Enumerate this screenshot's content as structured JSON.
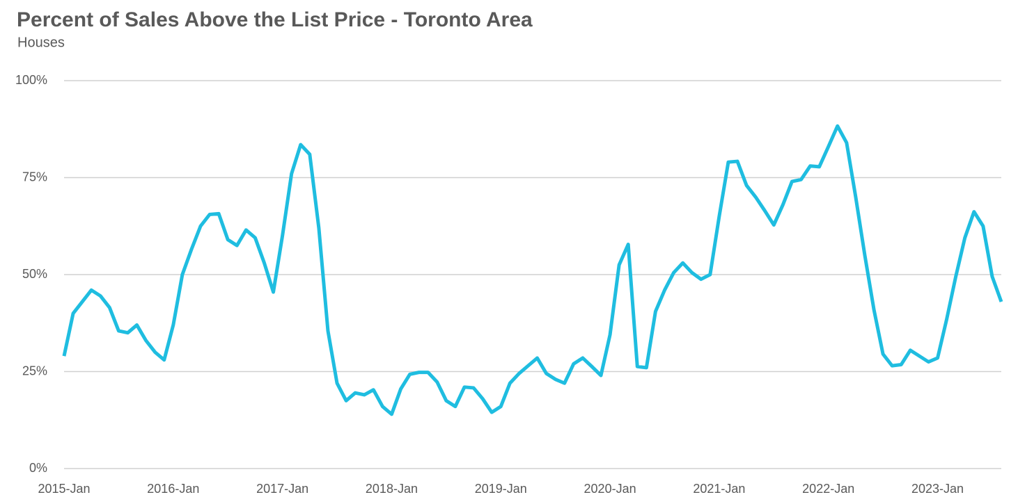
{
  "chart_data": {
    "type": "line",
    "title": "Percent of Sales Above the List Price - Toronto Area",
    "subtitle": "Houses",
    "categories": [
      "2015-Jan",
      null,
      null,
      null,
      null,
      null,
      null,
      null,
      null,
      null,
      null,
      null,
      "2016-Jan",
      null,
      null,
      null,
      null,
      null,
      null,
      null,
      null,
      null,
      null,
      null,
      "2017-Jan",
      null,
      null,
      null,
      null,
      null,
      null,
      null,
      null,
      null,
      null,
      null,
      "2018-Jan",
      null,
      null,
      null,
      null,
      null,
      null,
      null,
      null,
      null,
      null,
      null,
      "2019-Jan",
      null,
      null,
      null,
      null,
      null,
      null,
      null,
      null,
      null,
      null,
      null,
      "2020-Jan",
      null,
      null,
      null,
      null,
      null,
      null,
      null,
      null,
      null,
      null,
      null,
      "2021-Jan",
      null,
      null,
      null,
      null,
      null,
      null,
      null,
      null,
      null,
      null,
      null,
      "2022-Jan",
      null,
      null,
      null,
      null,
      null,
      null,
      null,
      null,
      null,
      null,
      null,
      "2023-Jan",
      null,
      null,
      null,
      null,
      null,
      null,
      null
    ],
    "values": [
      29,
      40,
      43,
      46,
      44.5,
      41.5,
      35.5,
      35,
      37,
      33,
      30,
      28,
      37,
      50,
      56.5,
      62.5,
      65.5,
      65.7,
      59,
      57.5,
      61.5,
      59.5,
      53,
      45.5,
      60,
      76,
      83.5,
      81,
      62,
      35.5,
      22,
      17.5,
      19.5,
      19,
      20.3,
      16,
      14,
      20.5,
      24.3,
      24.8,
      24.8,
      22.3,
      17.5,
      16,
      21,
      20.8,
      18,
      14.5,
      16,
      22,
      24.5,
      26.5,
      28.5,
      24.5,
      23,
      22,
      27,
      28.5,
      26.3,
      24,
      34.5,
      52.5,
      57.8,
      26.3,
      26,
      40.5,
      46,
      50.5,
      53,
      50.5,
      48.8,
      50,
      65,
      79,
      79.2,
      73,
      70,
      66.5,
      62.8,
      68,
      74,
      74.5,
      78,
      77.8,
      83,
      88.3,
      84,
      70,
      55,
      41,
      29.5,
      26.5,
      26.8,
      30.5,
      29,
      27.5,
      28.5,
      38.5,
      49.5,
      59.5,
      66.2,
      62.5,
      49.5,
      43
    ],
    "color": "#1fbde0",
    "ylim": [
      0,
      100
    ],
    "yticks": [
      {
        "value": 0,
        "label": "0%"
      },
      {
        "value": 25,
        "label": "25%"
      },
      {
        "value": 50,
        "label": "50%"
      },
      {
        "value": 75,
        "label": "75%"
      },
      {
        "value": 100,
        "label": "100%"
      }
    ],
    "grid": true
  }
}
